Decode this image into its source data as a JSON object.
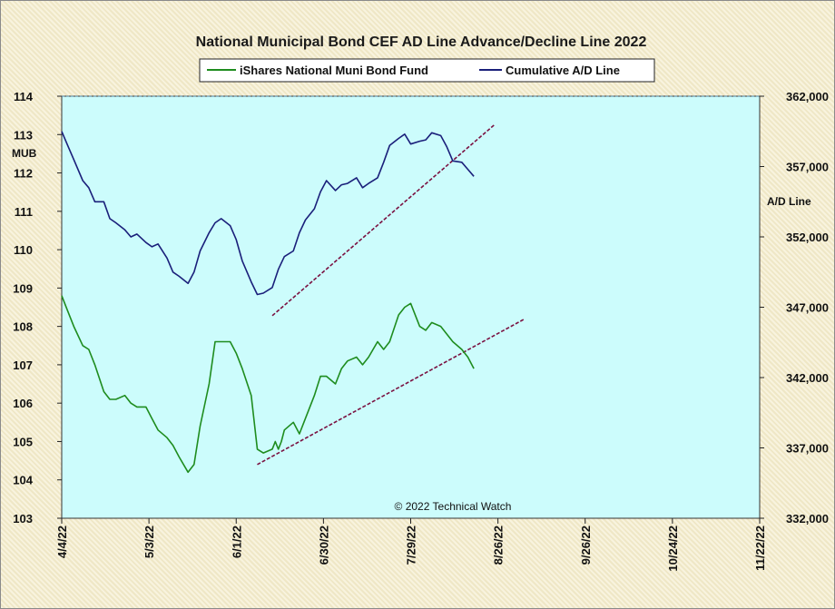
{
  "chart_data": {
    "type": "line",
    "title": "National Municipal Bond CEF AD Line Advance/Decline Line 2022",
    "copyright": "© 2022 Technical Watch",
    "x_ticks": [
      "4/4/22",
      "5/3/22",
      "6/1/22",
      "6/30/22",
      "7/29/22",
      "8/26/22",
      "9/26/22",
      "10/24/22",
      "11/22/22"
    ],
    "xlim": [
      "2022-04-04",
      "2022-11-22"
    ],
    "y_left": {
      "label": "MUB",
      "range": [
        103,
        114
      ],
      "ticks": [
        "103",
        "104",
        "105",
        "106",
        "107",
        "108",
        "109",
        "110",
        "111",
        "112",
        "113",
        "114"
      ]
    },
    "y_right": {
      "label": "A/D Line",
      "range": [
        332000,
        362000
      ],
      "ticks": [
        "332,000",
        "337,000",
        "342,000",
        "347,000",
        "352,000",
        "357,000",
        "362,000"
      ]
    },
    "background_color": "#ccfcfc",
    "legend_position": "top-center",
    "series": [
      {
        "name": "iShares National Muni Bond Fund",
        "axis": "left",
        "color": "#1e8c1e",
        "x": [
          "2022-04-04",
          "2022-04-06",
          "2022-04-08",
          "2022-04-11",
          "2022-04-13",
          "2022-04-15",
          "2022-04-18",
          "2022-04-20",
          "2022-04-22",
          "2022-04-25",
          "2022-04-27",
          "2022-04-29",
          "2022-05-02",
          "2022-05-04",
          "2022-05-06",
          "2022-05-09",
          "2022-05-11",
          "2022-05-13",
          "2022-05-16",
          "2022-05-18",
          "2022-05-20",
          "2022-05-23",
          "2022-05-25",
          "2022-05-27",
          "2022-05-30",
          "2022-06-01",
          "2022-06-03",
          "2022-06-06",
          "2022-06-08",
          "2022-06-10",
          "2022-06-13",
          "2022-06-14",
          "2022-06-15",
          "2022-06-16",
          "2022-06-17",
          "2022-06-20",
          "2022-06-22",
          "2022-06-24",
          "2022-06-27",
          "2022-06-29",
          "2022-07-01",
          "2022-07-04",
          "2022-07-06",
          "2022-07-08",
          "2022-07-11",
          "2022-07-13",
          "2022-07-15",
          "2022-07-18",
          "2022-07-20",
          "2022-07-22",
          "2022-07-25",
          "2022-07-27",
          "2022-07-29",
          "2022-08-01",
          "2022-08-03",
          "2022-08-05",
          "2022-08-08",
          "2022-08-10",
          "2022-08-12",
          "2022-08-15",
          "2022-08-17",
          "2022-08-19"
        ],
        "values": [
          108.8,
          108.4,
          108.0,
          107.5,
          107.4,
          107.0,
          106.3,
          106.1,
          106.1,
          106.2,
          106.0,
          105.9,
          105.9,
          105.6,
          105.3,
          105.1,
          104.9,
          104.6,
          104.2,
          104.4,
          105.4,
          106.5,
          107.6,
          107.6,
          107.6,
          107.3,
          106.9,
          106.2,
          104.8,
          104.7,
          104.8,
          105.0,
          104.8,
          105.0,
          105.3,
          105.5,
          105.2,
          105.6,
          106.2,
          106.7,
          106.7,
          106.5,
          106.9,
          107.1,
          107.2,
          107.0,
          107.2,
          107.6,
          107.4,
          107.6,
          108.3,
          108.5,
          108.6,
          108.0,
          107.9,
          108.1,
          108.0,
          107.8,
          107.6,
          107.4,
          107.2,
          106.9
        ]
      },
      {
        "name": "Cumulative A/D Line",
        "axis": "right",
        "color": "#1a1f7a",
        "x": [
          "2022-04-04",
          "2022-04-06",
          "2022-04-08",
          "2022-04-11",
          "2022-04-13",
          "2022-04-15",
          "2022-04-18",
          "2022-04-20",
          "2022-04-22",
          "2022-04-25",
          "2022-04-27",
          "2022-04-29",
          "2022-05-02",
          "2022-05-04",
          "2022-05-06",
          "2022-05-09",
          "2022-05-11",
          "2022-05-13",
          "2022-05-16",
          "2022-05-18",
          "2022-05-20",
          "2022-05-23",
          "2022-05-25",
          "2022-05-27",
          "2022-05-30",
          "2022-06-01",
          "2022-06-03",
          "2022-06-06",
          "2022-06-08",
          "2022-06-10",
          "2022-06-13",
          "2022-06-15",
          "2022-06-17",
          "2022-06-20",
          "2022-06-22",
          "2022-06-24",
          "2022-06-27",
          "2022-06-29",
          "2022-07-01",
          "2022-07-04",
          "2022-07-06",
          "2022-07-08",
          "2022-07-11",
          "2022-07-13",
          "2022-07-15",
          "2022-07-18",
          "2022-07-20",
          "2022-07-22",
          "2022-07-25",
          "2022-07-27",
          "2022-07-29",
          "2022-08-01",
          "2022-08-03",
          "2022-08-05",
          "2022-08-08",
          "2022-08-10",
          "2022-08-12",
          "2022-08-15",
          "2022-08-17",
          "2022-08-19"
        ],
        "values": [
          359500,
          358500,
          357500,
          356000,
          355500,
          354500,
          354500,
          353300,
          353000,
          352500,
          352000,
          352200,
          351600,
          351300,
          351500,
          350500,
          349500,
          349200,
          348700,
          349500,
          351000,
          352300,
          353000,
          353300,
          352800,
          351800,
          350300,
          348800,
          347900,
          348000,
          348400,
          349700,
          350600,
          351000,
          352300,
          353200,
          354000,
          355200,
          356000,
          355300,
          355700,
          355800,
          356200,
          355500,
          355800,
          356200,
          357300,
          358500,
          359000,
          359300,
          358600,
          358800,
          358900,
          359400,
          359200,
          358400,
          357400,
          357300,
          356800,
          356300
        ]
      }
    ],
    "trendlines": [
      {
        "axis": "right",
        "color": "#7a1040",
        "x": [
          "2022-06-13",
          "2022-08-26"
        ],
        "values": [
          346400,
          360000
        ]
      },
      {
        "axis": "left",
        "color": "#7a1040",
        "x": [
          "2022-06-08",
          "2022-09-05"
        ],
        "values": [
          104.4,
          108.2
        ]
      }
    ]
  }
}
